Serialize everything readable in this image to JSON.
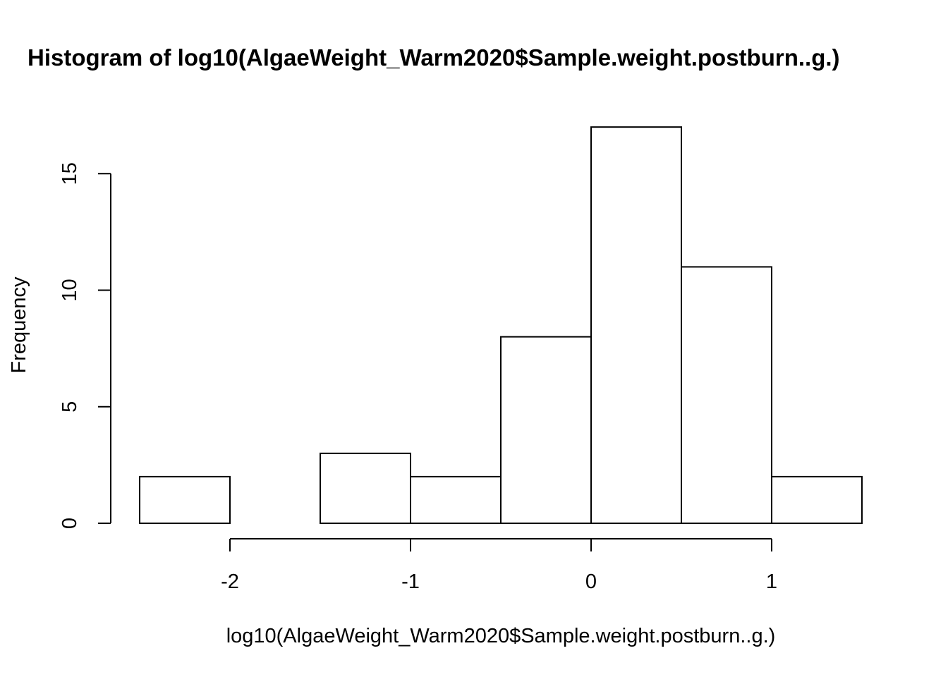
{
  "chart_data": {
    "type": "bar",
    "title": "Histogram of log10(AlgaeWeight_Warm2020$Sample.weight.postburn..g.)",
    "xlabel": "log10(AlgaeWeight_Warm2020$Sample.weight.postburn..g.)",
    "ylabel": "Frequency",
    "bins": [
      {
        "x0": -2.5,
        "x1": -2.0,
        "count": 2
      },
      {
        "x0": -2.0,
        "x1": -1.5,
        "count": 0
      },
      {
        "x0": -1.5,
        "x1": -1.0,
        "count": 3
      },
      {
        "x0": -1.0,
        "x1": -0.5,
        "count": 2
      },
      {
        "x0": -0.5,
        "x1": 0.0,
        "count": 8
      },
      {
        "x0": 0.0,
        "x1": 0.5,
        "count": 17
      },
      {
        "x0": 0.5,
        "x1": 1.0,
        "count": 11
      },
      {
        "x0": 1.0,
        "x1": 1.5,
        "count": 2
      }
    ],
    "xlim": [
      -2.5,
      1.5
    ],
    "ylim": [
      0,
      17
    ],
    "x_ticks": [
      -2,
      -1,
      0,
      1
    ],
    "x_tick_labels": [
      "-2",
      "-1",
      "0",
      "1"
    ],
    "y_ticks": [
      0,
      5,
      10,
      15
    ],
    "y_tick_labels": [
      "0",
      "5",
      "10",
      "15"
    ],
    "grid": false,
    "bar_fill": "#ffffff",
    "bar_stroke": "#000000"
  }
}
